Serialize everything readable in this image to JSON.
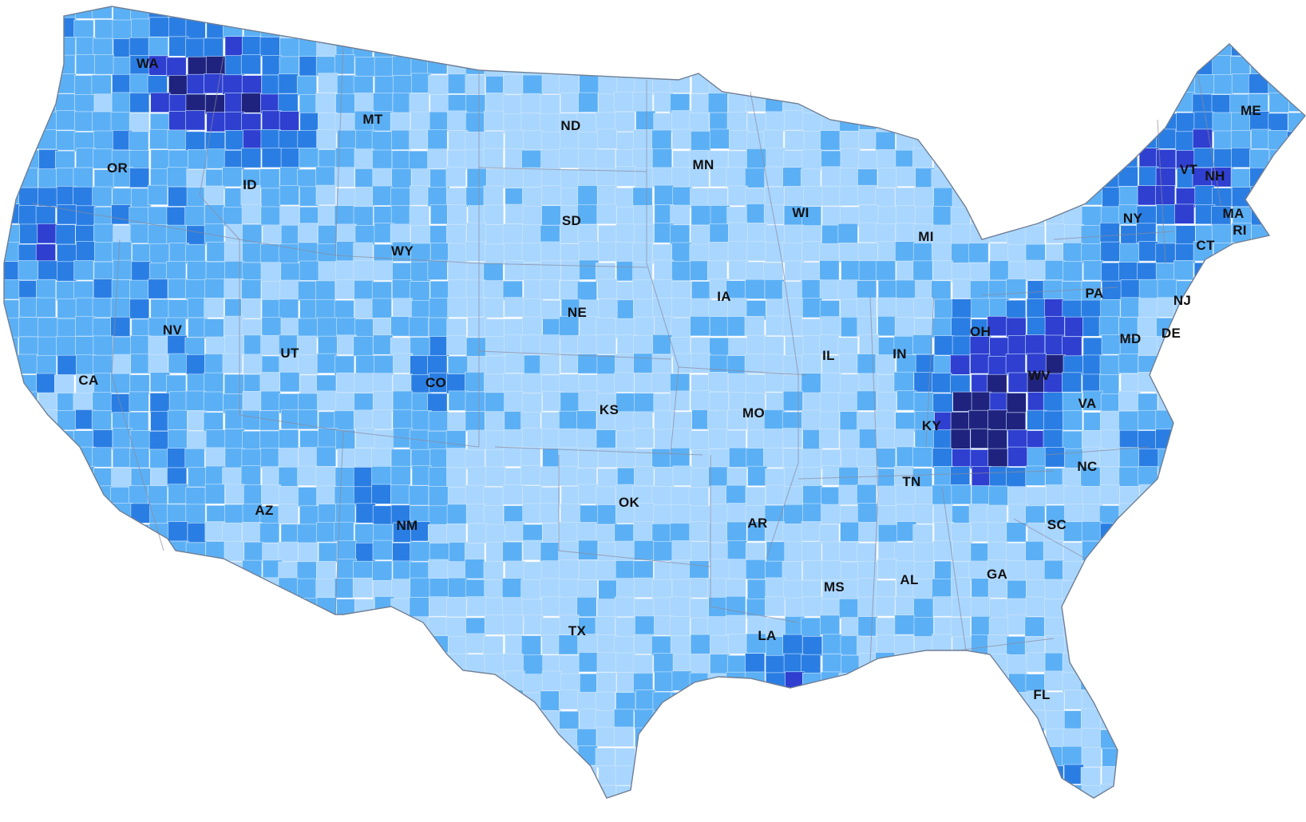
{
  "map": {
    "region": "contiguous United States",
    "unit_level": "county",
    "palette": [
      "#a9d6ff",
      "#5bb0f5",
      "#2a7ee3",
      "#2f3fd0",
      "#20237e"
    ],
    "background": "#ffffff",
    "border_color": "#cfe6ff",
    "state_border_color": "#8a8a9a"
  },
  "labels": {
    "WA": "WA",
    "OR": "OR",
    "CA": "CA",
    "NV": "NV",
    "ID": "ID",
    "MT": "MT",
    "WY": "WY",
    "UT": "UT",
    "AZ": "AZ",
    "CO": "CO",
    "NM": "NM",
    "ND": "ND",
    "SD": "SD",
    "NE": "NE",
    "KS": "KS",
    "OK": "OK",
    "TX": "TX",
    "MN": "MN",
    "IA": "IA",
    "MO": "MO",
    "AR": "AR",
    "LA": "LA",
    "WI": "WI",
    "IL": "IL",
    "MI": "MI",
    "IN": "IN",
    "OH": "OH",
    "KY": "KY",
    "TN": "TN",
    "MS": "MS",
    "AL": "AL",
    "GA": "GA",
    "FL": "FL",
    "SC": "SC",
    "NC": "NC",
    "VA": "VA",
    "WV": "WV",
    "MD": "MD",
    "DE": "DE",
    "PA": "PA",
    "NJ": "NJ",
    "NY": "NY",
    "CT": "CT",
    "RI": "RI",
    "MA": "MA",
    "VT": "VT",
    "NH": "NH",
    "ME": "ME"
  }
}
